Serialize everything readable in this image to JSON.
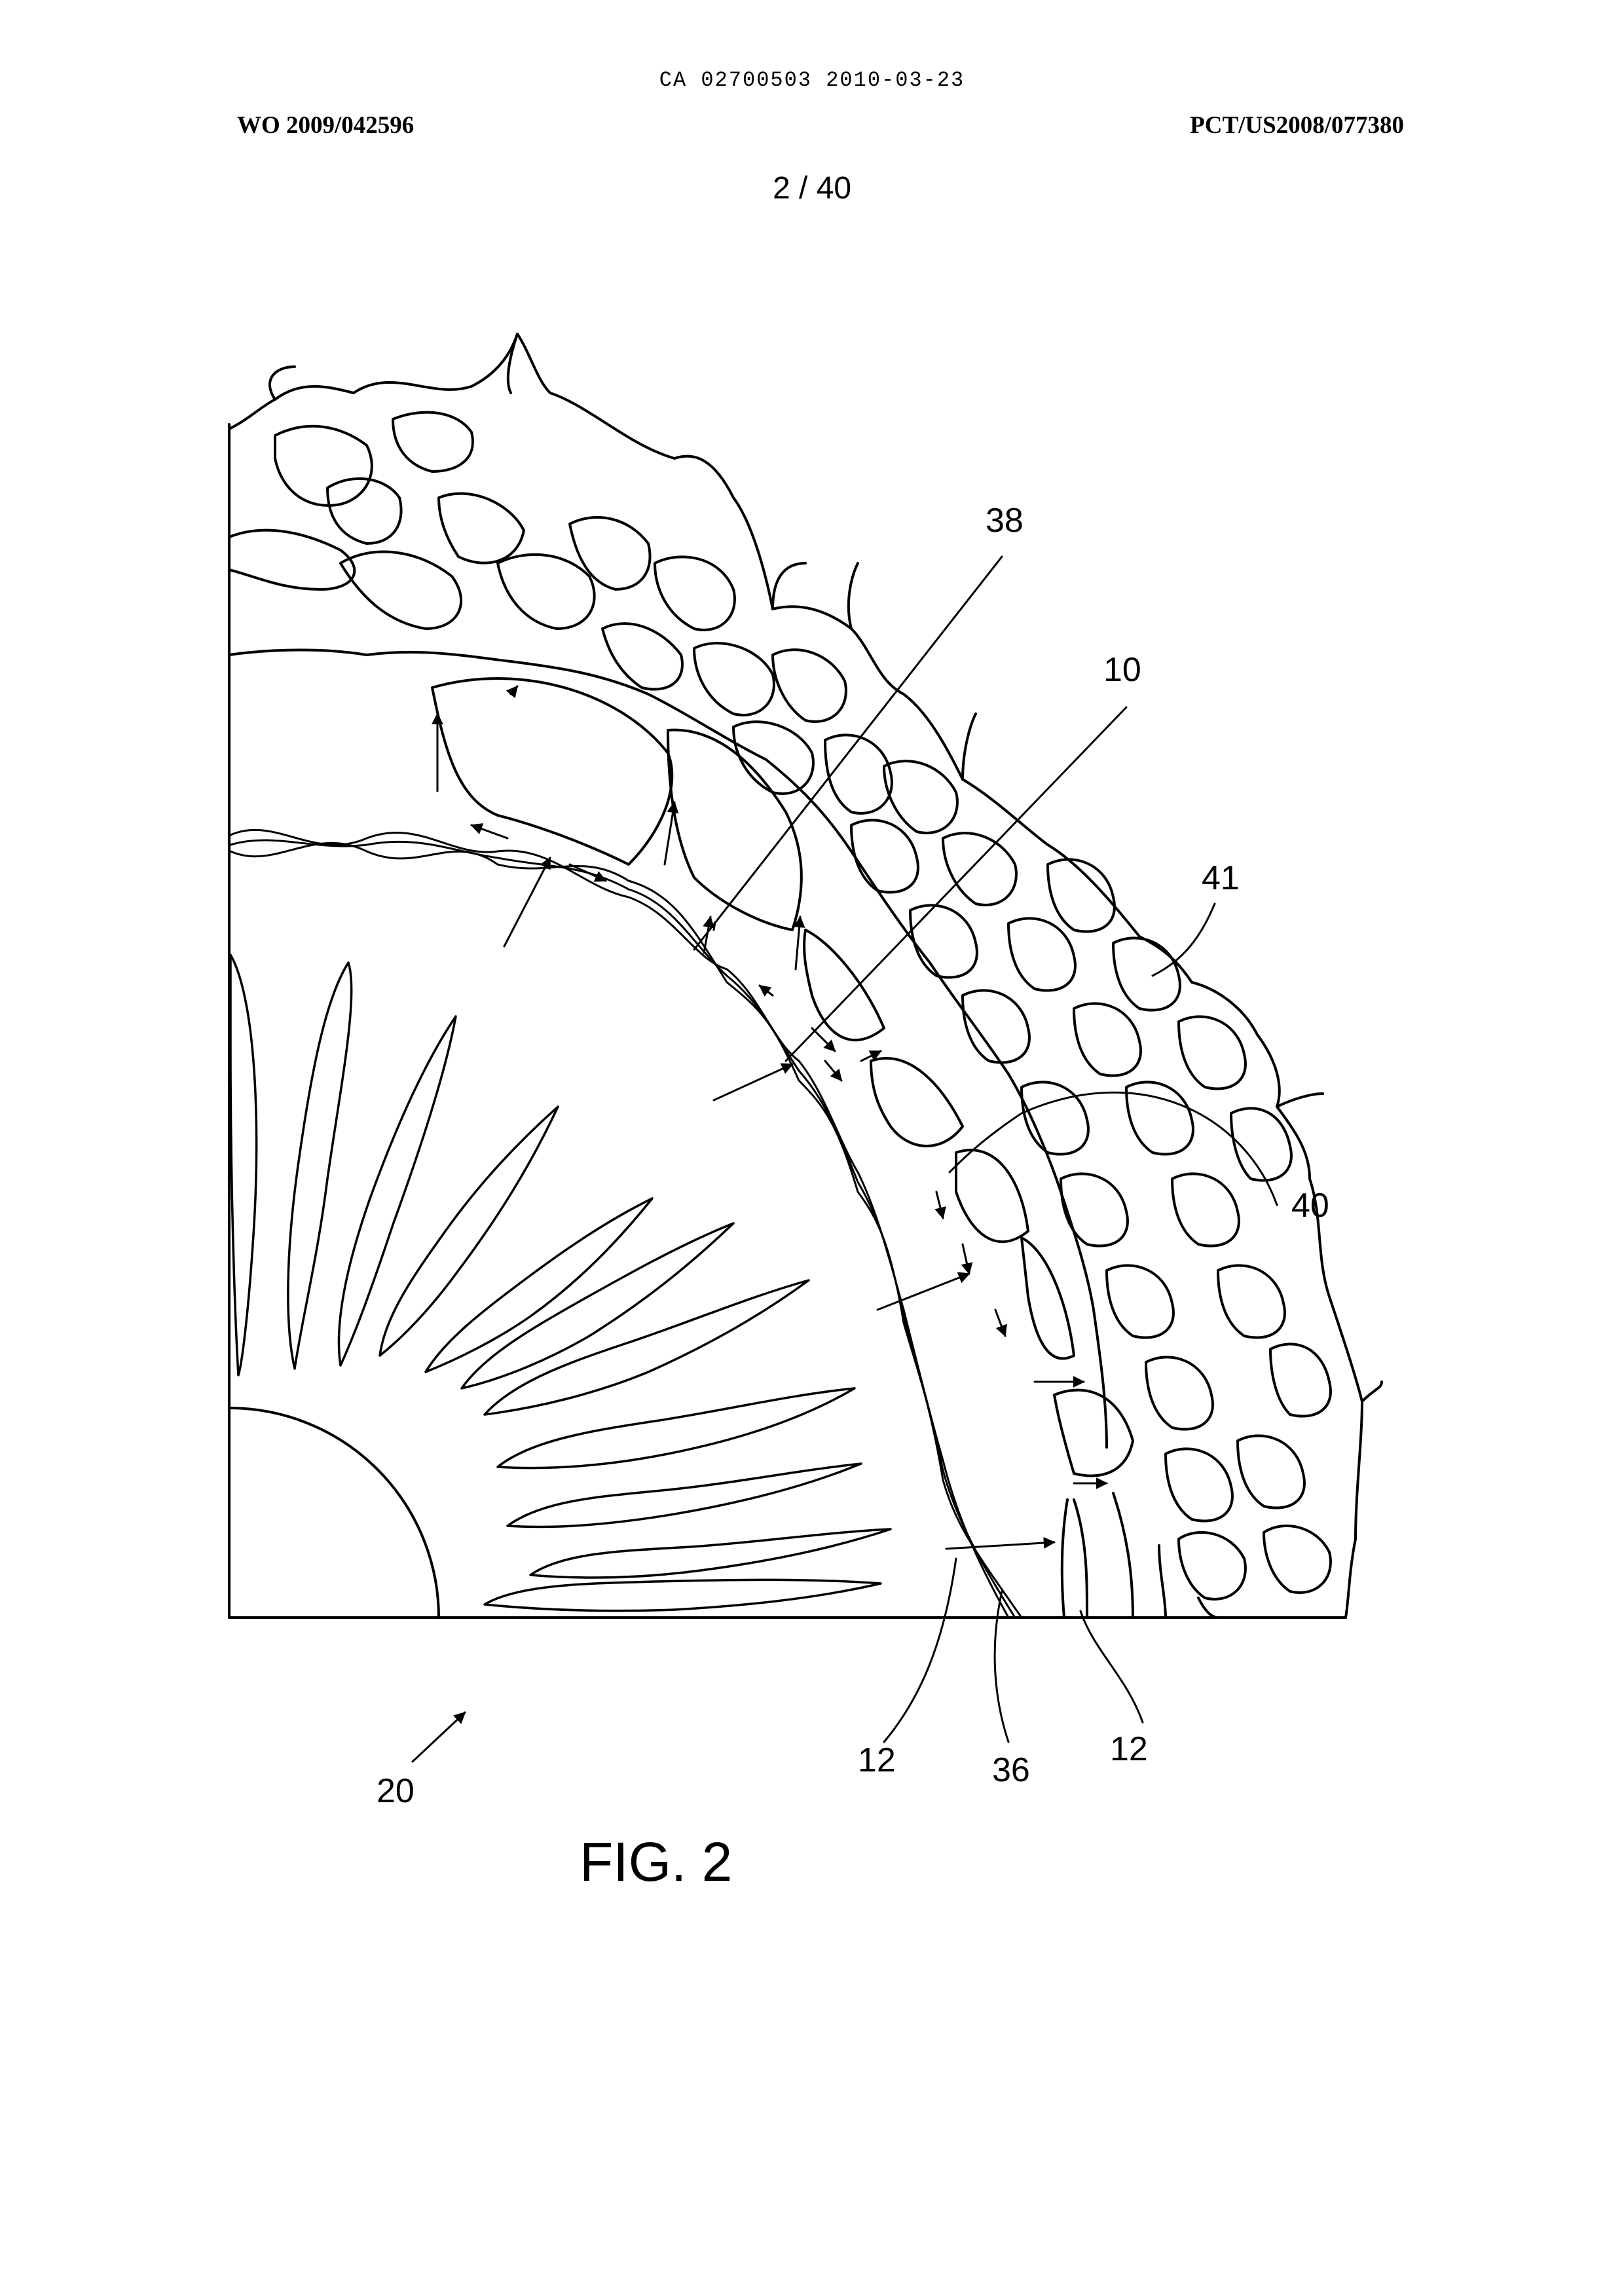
{
  "header": {
    "doc_id": "CA 02700503 2010-03-23",
    "left": "WO 2009/042596",
    "right": "PCT/US2008/077380"
  },
  "page": {
    "number": "2 / 40"
  },
  "figure": {
    "caption": "FIG. 2",
    "labels": {
      "ref_38": "38",
      "ref_10": "10",
      "ref_41": "41",
      "ref_40": "40",
      "ref_12_left": "12",
      "ref_36": "36",
      "ref_12_right": "12",
      "ref_20": "20"
    }
  }
}
